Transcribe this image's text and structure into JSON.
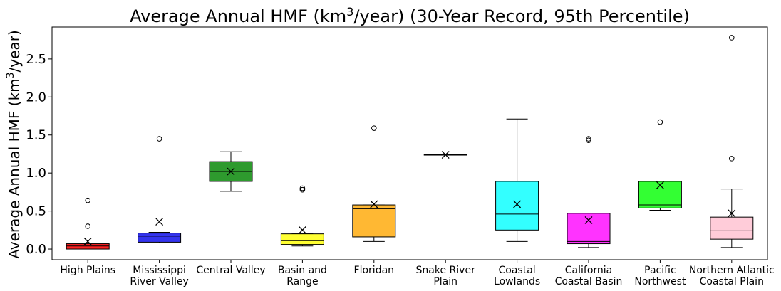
{
  "chart_data": {
    "type": "box",
    "title": "Average Annual HMF (km³/year) (30-Year Record, 95th Percentile)",
    "title_parts": {
      "pre": "Average Annual HMF (km",
      "sup": "3",
      "post": "/year) (30-Year Record, 95th Percentile)"
    },
    "ylabel_parts": {
      "pre": "Average Annual HMF (km",
      "sup": "3",
      "post": "/year)"
    },
    "xlabel": "",
    "ylim": [
      -0.14,
      2.92
    ],
    "yticks": [
      "0.0",
      "0.5",
      "1.0",
      "1.5",
      "2.0",
      "2.5"
    ],
    "ytick_values": [
      0.0,
      0.5,
      1.0,
      1.5,
      2.0,
      2.5
    ],
    "grid": false,
    "legend": "none",
    "categories": [
      {
        "name": "High Plains",
        "lines": [
          "High Plains"
        ],
        "color": "#ff2222",
        "whislo": 0.0,
        "q1": 0.0,
        "med": 0.04,
        "q3": 0.07,
        "whishi": 0.08,
        "mean": 0.1,
        "fliers": [
          0.3,
          0.64
        ]
      },
      {
        "name": "Mississippi River Valley",
        "lines": [
          "Mississippi",
          "River Valley"
        ],
        "color": "#3333ee",
        "whislo": 0.08,
        "q1": 0.09,
        "med": 0.17,
        "q3": 0.21,
        "whishi": 0.22,
        "mean": 0.36,
        "fliers": [
          1.45
        ]
      },
      {
        "name": "Central Valley",
        "lines": [
          "Central Valley"
        ],
        "color": "#2e9a2e",
        "whislo": 0.76,
        "q1": 0.89,
        "med": 1.02,
        "q3": 1.15,
        "whishi": 1.28,
        "mean": 1.02,
        "fliers": []
      },
      {
        "name": "Basin and Range",
        "lines": [
          "Basin and",
          "Range"
        ],
        "color": "#ffff33",
        "whislo": 0.04,
        "q1": 0.06,
        "med": 0.11,
        "q3": 0.2,
        "whishi": 0.2,
        "mean": 0.25,
        "fliers": [
          0.78,
          0.8
        ]
      },
      {
        "name": "Floridan",
        "lines": [
          "Floridan"
        ],
        "color": "#ffb833",
        "whislo": 0.1,
        "q1": 0.16,
        "med": 0.53,
        "q3": 0.58,
        "whishi": 0.58,
        "mean": 0.59,
        "fliers": [
          1.59
        ]
      },
      {
        "name": "Snake River Plain",
        "lines": [
          "Snake River",
          "Plain"
        ],
        "color": "#ffffff",
        "whislo": 1.24,
        "q1": 1.24,
        "med": 1.24,
        "q3": 1.24,
        "whishi": 1.24,
        "mean": 1.24,
        "fliers": []
      },
      {
        "name": "Coastal Lowlands",
        "lines": [
          "Coastal",
          "Lowlands"
        ],
        "color": "#33ffff",
        "whislo": 0.1,
        "q1": 0.25,
        "med": 0.46,
        "q3": 0.89,
        "whishi": 1.71,
        "mean": 0.59,
        "fliers": []
      },
      {
        "name": "California Coastal Basin",
        "lines": [
          "California",
          "Coastal Basin"
        ],
        "color": "#ff33ff",
        "whislo": 0.02,
        "q1": 0.07,
        "med": 0.1,
        "q3": 0.47,
        "whishi": 0.47,
        "mean": 0.38,
        "fliers": [
          1.43,
          1.45
        ]
      },
      {
        "name": "Pacific Northwest",
        "lines": [
          "Pacific",
          "Northwest"
        ],
        "color": "#33ff33",
        "whislo": 0.51,
        "q1": 0.54,
        "med": 0.58,
        "q3": 0.89,
        "whishi": 0.89,
        "mean": 0.84,
        "fliers": [
          1.67
        ]
      },
      {
        "name": "Northern Atlantic Coastal Plain",
        "lines": [
          "Northern Atlantic",
          "Coastal Plain"
        ],
        "color": "#ffccd9",
        "whislo": 0.02,
        "q1": 0.13,
        "med": 0.24,
        "q3": 0.42,
        "whishi": 0.79,
        "mean": 0.47,
        "fliers": [
          1.19,
          2.78
        ]
      }
    ]
  }
}
